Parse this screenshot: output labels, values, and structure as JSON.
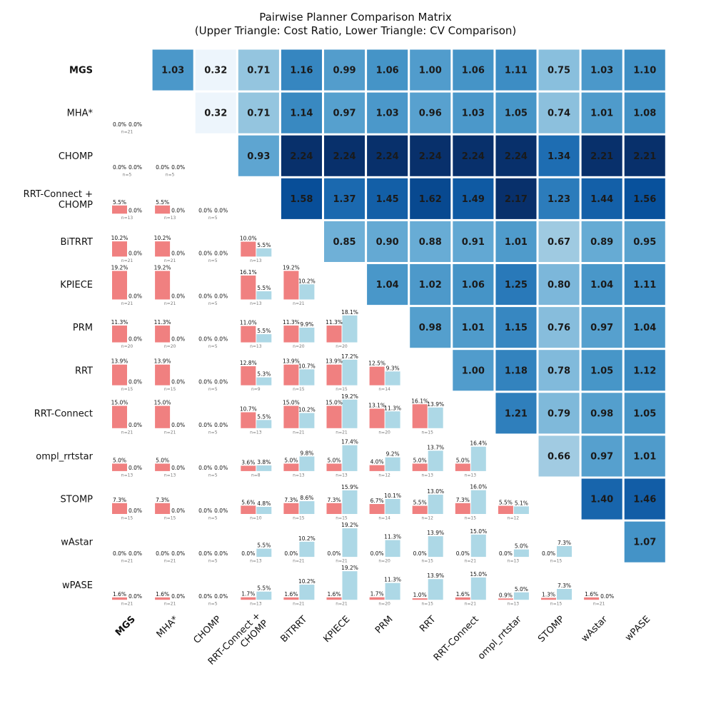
{
  "chart_data": {
    "type": "heatmap",
    "title": "Pairwise Planner Comparison Matrix",
    "subtitle": "(Upper Triangle: Cost Ratio, Lower Triangle: CV Comparison)",
    "planners": [
      "MGS",
      "MHA*",
      "CHOMP",
      "RRT-Connect + CHOMP",
      "BiTRRT",
      "KPIECE",
      "PRM",
      "RRT",
      "RRT-Connect",
      "ompl_rrtstar",
      "STOMP",
      "wAstar",
      "wPASE"
    ],
    "bold_planner": "MGS",
    "colormap": "Blues",
    "color_range": [
      0.3,
      2.0
    ],
    "bar_colors": {
      "row_planner": "#f08080",
      "col_planner": "#add8e6"
    },
    "cost_ratio": [
      [
        null,
        1.03,
        0.32,
        0.71,
        1.16,
        0.99,
        1.06,
        1.0,
        1.06,
        1.11,
        0.75,
        1.03,
        1.1
      ],
      [
        null,
        null,
        0.32,
        0.71,
        1.14,
        0.97,
        1.03,
        0.96,
        1.03,
        1.05,
        0.74,
        1.01,
        1.08
      ],
      [
        null,
        null,
        null,
        0.93,
        2.24,
        2.24,
        2.24,
        2.24,
        2.24,
        2.24,
        1.34,
        2.21,
        2.21
      ],
      [
        null,
        null,
        null,
        null,
        1.58,
        1.37,
        1.45,
        1.62,
        1.49,
        2.17,
        1.23,
        1.44,
        1.56
      ],
      [
        null,
        null,
        null,
        null,
        null,
        0.85,
        0.9,
        0.88,
        0.91,
        1.01,
        0.67,
        0.89,
        0.95
      ],
      [
        null,
        null,
        null,
        null,
        null,
        null,
        1.04,
        1.02,
        1.06,
        1.25,
        0.8,
        1.04,
        1.11
      ],
      [
        null,
        null,
        null,
        null,
        null,
        null,
        null,
        0.98,
        1.01,
        1.15,
        0.76,
        0.97,
        1.04
      ],
      [
        null,
        null,
        null,
        null,
        null,
        null,
        null,
        null,
        1.0,
        1.18,
        0.78,
        1.05,
        1.12
      ],
      [
        null,
        null,
        null,
        null,
        null,
        null,
        null,
        null,
        null,
        1.21,
        0.79,
        0.98,
        1.05
      ],
      [
        null,
        null,
        null,
        null,
        null,
        null,
        null,
        null,
        null,
        null,
        0.66,
        0.97,
        1.01
      ],
      [
        null,
        null,
        null,
        null,
        null,
        null,
        null,
        null,
        null,
        null,
        null,
        1.4,
        1.46
      ],
      [
        null,
        null,
        null,
        null,
        null,
        null,
        null,
        null,
        null,
        null,
        null,
        null,
        1.07
      ],
      [
        null,
        null,
        null,
        null,
        null,
        null,
        null,
        null,
        null,
        null,
        null,
        null,
        null
      ]
    ],
    "cost_ratio_labels": [
      [
        null,
        "1.03",
        "0.32",
        "0.71",
        "1.16",
        "0.99",
        "1.06",
        "1.00",
        "1.06",
        "1.11",
        "0.75",
        "1.03",
        "1.10"
      ],
      [
        null,
        null,
        "0.32",
        "0.71",
        "1.14",
        "0.97",
        "1.03",
        "0.96",
        "1.03",
        "1.05",
        "0.74",
        "1.01",
        "1.08"
      ],
      [
        null,
        null,
        null,
        "0.93",
        "2.24",
        "2.24",
        "2.24",
        "2.24",
        "2.24",
        "2.24",
        "1.34",
        "2.21",
        "2.21"
      ],
      [
        null,
        null,
        null,
        null,
        "1.58",
        "1.37",
        "1.45",
        "1.62",
        "1.49",
        "2.17",
        "1.23",
        "1.44",
        "1.56"
      ],
      [
        null,
        null,
        null,
        null,
        null,
        "0.85",
        "0.90",
        "0.88",
        "0.91",
        "1.01",
        "0.67",
        "0.89",
        "0.95"
      ],
      [
        null,
        null,
        null,
        null,
        null,
        null,
        "1.04",
        "1.02",
        "1.06",
        "1.25",
        "0.80",
        "1.04",
        "1.11"
      ],
      [
        null,
        null,
        null,
        null,
        null,
        null,
        null,
        "0.98",
        "1.01",
        "1.15",
        "0.76",
        "0.97",
        "1.04"
      ],
      [
        null,
        null,
        null,
        null,
        null,
        null,
        null,
        null,
        "1.00",
        "1.18",
        "0.78",
        "1.05",
        "1.12"
      ],
      [
        null,
        null,
        null,
        null,
        null,
        null,
        null,
        null,
        null,
        "1.21",
        "0.79",
        "0.98",
        "1.05"
      ],
      [
        null,
        null,
        null,
        null,
        null,
        null,
        null,
        null,
        null,
        null,
        "0.66",
        "0.97",
        "1.01"
      ],
      [
        null,
        null,
        null,
        null,
        null,
        null,
        null,
        null,
        null,
        null,
        null,
        "1.40",
        "1.46"
      ],
      [
        null,
        null,
        null,
        null,
        null,
        null,
        null,
        null,
        null,
        null,
        null,
        null,
        "1.07"
      ],
      [
        null,
        null,
        null,
        null,
        null,
        null,
        null,
        null,
        null,
        null,
        null,
        null,
        null
      ]
    ],
    "cv_comparison": [
      {
        "row": 1,
        "col": 0,
        "a": 0.0,
        "b": 0.0,
        "a_label": "0.0%",
        "b_label": "0.0%",
        "n_label": "n=21"
      },
      {
        "row": 2,
        "col": 0,
        "a": 0.0,
        "b": 0.0,
        "a_label": "0.0%",
        "b_label": "0.0%",
        "n_label": "n=5"
      },
      {
        "row": 2,
        "col": 1,
        "a": 0.0,
        "b": 0.0,
        "a_label": "0.0%",
        "b_label": "0.0%",
        "n_label": "n=5"
      },
      {
        "row": 3,
        "col": 0,
        "a": 5.5,
        "b": 0.0,
        "a_label": "5.5%",
        "b_label": "0.0%",
        "n_label": "n=13"
      },
      {
        "row": 3,
        "col": 1,
        "a": 5.5,
        "b": 0.0,
        "a_label": "5.5%",
        "b_label": "0.0%",
        "n_label": "n=13"
      },
      {
        "row": 3,
        "col": 2,
        "a": 0.0,
        "b": 0.0,
        "a_label": "0.0%",
        "b_label": "0.0%",
        "n_label": "n=5"
      },
      {
        "row": 4,
        "col": 0,
        "a": 10.2,
        "b": 0.0,
        "a_label": "10.2%",
        "b_label": "0.0%",
        "n_label": "n=21"
      },
      {
        "row": 4,
        "col": 1,
        "a": 10.2,
        "b": 0.0,
        "a_label": "10.2%",
        "b_label": "0.0%",
        "n_label": "n=21"
      },
      {
        "row": 4,
        "col": 2,
        "a": 0.0,
        "b": 0.0,
        "a_label": "0.0%",
        "b_label": "0.0%",
        "n_label": "n=5"
      },
      {
        "row": 4,
        "col": 3,
        "a": 10.0,
        "b": 5.5,
        "a_label": "10.0%",
        "b_label": "5.5%",
        "n_label": "n=13"
      },
      {
        "row": 5,
        "col": 0,
        "a": 19.2,
        "b": 0.0,
        "a_label": "19.2%",
        "b_label": "0.0%",
        "n_label": "n=21"
      },
      {
        "row": 5,
        "col": 1,
        "a": 19.2,
        "b": 0.0,
        "a_label": "19.2%",
        "b_label": "0.0%",
        "n_label": "n=21"
      },
      {
        "row": 5,
        "col": 2,
        "a": 0.0,
        "b": 0.0,
        "a_label": "0.0%",
        "b_label": "0.0%",
        "n_label": "n=5"
      },
      {
        "row": 5,
        "col": 3,
        "a": 16.1,
        "b": 5.5,
        "a_label": "16.1%",
        "b_label": "5.5%",
        "n_label": "n=13"
      },
      {
        "row": 5,
        "col": 4,
        "a": 19.2,
        "b": 10.2,
        "a_label": "19.2%",
        "b_label": "10.2%",
        "n_label": "n=21"
      },
      {
        "row": 6,
        "col": 0,
        "a": 11.3,
        "b": 0.0,
        "a_label": "11.3%",
        "b_label": "0.0%",
        "n_label": "n=20"
      },
      {
        "row": 6,
        "col": 1,
        "a": 11.3,
        "b": 0.0,
        "a_label": "11.3%",
        "b_label": "0.0%",
        "n_label": "n=20"
      },
      {
        "row": 6,
        "col": 2,
        "a": 0.0,
        "b": 0.0,
        "a_label": "0.0%",
        "b_label": "0.0%",
        "n_label": "n=5"
      },
      {
        "row": 6,
        "col": 3,
        "a": 11.0,
        "b": 5.5,
        "a_label": "11.0%",
        "b_label": "5.5%",
        "n_label": "n=13"
      },
      {
        "row": 6,
        "col": 4,
        "a": 11.3,
        "b": 9.9,
        "a_label": "11.3%",
        "b_label": "9.9%",
        "n_label": "n=20"
      },
      {
        "row": 6,
        "col": 5,
        "a": 11.3,
        "b": 18.1,
        "a_label": "11.3%",
        "b_label": "18.1%",
        "n_label": "n=20"
      },
      {
        "row": 7,
        "col": 0,
        "a": 13.9,
        "b": 0.0,
        "a_label": "13.9%",
        "b_label": "0.0%",
        "n_label": "n=15"
      },
      {
        "row": 7,
        "col": 1,
        "a": 13.9,
        "b": 0.0,
        "a_label": "13.9%",
        "b_label": "0.0%",
        "n_label": "n=15"
      },
      {
        "row": 7,
        "col": 2,
        "a": 0.0,
        "b": 0.0,
        "a_label": "0.0%",
        "b_label": "0.0%",
        "n_label": "n=5"
      },
      {
        "row": 7,
        "col": 3,
        "a": 12.8,
        "b": 5.3,
        "a_label": "12.8%",
        "b_label": "5.3%",
        "n_label": "n=9"
      },
      {
        "row": 7,
        "col": 4,
        "a": 13.9,
        "b": 10.7,
        "a_label": "13.9%",
        "b_label": "10.7%",
        "n_label": "n=15"
      },
      {
        "row": 7,
        "col": 5,
        "a": 13.9,
        "b": 17.2,
        "a_label": "13.9%",
        "b_label": "17.2%",
        "n_label": "n=15"
      },
      {
        "row": 7,
        "col": 6,
        "a": 12.5,
        "b": 9.3,
        "a_label": "12.5%",
        "b_label": "9.3%",
        "n_label": "n=14"
      },
      {
        "row": 8,
        "col": 0,
        "a": 15.0,
        "b": 0.0,
        "a_label": "15.0%",
        "b_label": "0.0%",
        "n_label": "n=21"
      },
      {
        "row": 8,
        "col": 1,
        "a": 15.0,
        "b": 0.0,
        "a_label": "15.0%",
        "b_label": "0.0%",
        "n_label": "n=21"
      },
      {
        "row": 8,
        "col": 2,
        "a": 0.0,
        "b": 0.0,
        "a_label": "0.0%",
        "b_label": "0.0%",
        "n_label": "n=5"
      },
      {
        "row": 8,
        "col": 3,
        "a": 10.7,
        "b": 5.5,
        "a_label": "10.7%",
        "b_label": "5.5%",
        "n_label": "n=13"
      },
      {
        "row": 8,
        "col": 4,
        "a": 15.0,
        "b": 10.2,
        "a_label": "15.0%",
        "b_label": "10.2%",
        "n_label": "n=21"
      },
      {
        "row": 8,
        "col": 5,
        "a": 15.0,
        "b": 19.2,
        "a_label": "15.0%",
        "b_label": "19.2%",
        "n_label": "n=21"
      },
      {
        "row": 8,
        "col": 6,
        "a": 13.1,
        "b": 11.3,
        "a_label": "13.1%",
        "b_label": "11.3%",
        "n_label": "n=20"
      },
      {
        "row": 8,
        "col": 7,
        "a": 16.1,
        "b": 13.9,
        "a_label": "16.1%",
        "b_label": "13.9%",
        "n_label": "n=15"
      },
      {
        "row": 9,
        "col": 0,
        "a": 5.0,
        "b": 0.0,
        "a_label": "5.0%",
        "b_label": "0.0%",
        "n_label": "n=13"
      },
      {
        "row": 9,
        "col": 1,
        "a": 5.0,
        "b": 0.0,
        "a_label": "5.0%",
        "b_label": "0.0%",
        "n_label": "n=13"
      },
      {
        "row": 9,
        "col": 2,
        "a": 0.0,
        "b": 0.0,
        "a_label": "0.0%",
        "b_label": "0.0%",
        "n_label": "n=5"
      },
      {
        "row": 9,
        "col": 3,
        "a": 3.6,
        "b": 3.8,
        "a_label": "3.6%",
        "b_label": "3.8%",
        "n_label": "n=8"
      },
      {
        "row": 9,
        "col": 4,
        "a": 5.0,
        "b": 9.8,
        "a_label": "5.0%",
        "b_label": "9.8%",
        "n_label": "n=13"
      },
      {
        "row": 9,
        "col": 5,
        "a": 5.0,
        "b": 17.4,
        "a_label": "5.0%",
        "b_label": "17.4%",
        "n_label": "n=13"
      },
      {
        "row": 9,
        "col": 6,
        "a": 4.0,
        "b": 9.2,
        "a_label": "4.0%",
        "b_label": "9.2%",
        "n_label": "n=12"
      },
      {
        "row": 9,
        "col": 7,
        "a": 5.0,
        "b": 13.7,
        "a_label": "5.0%",
        "b_label": "13.7%",
        "n_label": "n=13"
      },
      {
        "row": 9,
        "col": 8,
        "a": 5.0,
        "b": 16.4,
        "a_label": "5.0%",
        "b_label": "16.4%",
        "n_label": "n=13"
      },
      {
        "row": 10,
        "col": 0,
        "a": 7.3,
        "b": 0.0,
        "a_label": "7.3%",
        "b_label": "0.0%",
        "n_label": "n=15"
      },
      {
        "row": 10,
        "col": 1,
        "a": 7.3,
        "b": 0.0,
        "a_label": "7.3%",
        "b_label": "0.0%",
        "n_label": "n=15"
      },
      {
        "row": 10,
        "col": 2,
        "a": 0.0,
        "b": 0.0,
        "a_label": "0.0%",
        "b_label": "0.0%",
        "n_label": "n=5"
      },
      {
        "row": 10,
        "col": 3,
        "a": 5.6,
        "b": 4.8,
        "a_label": "5.6%",
        "b_label": "4.8%",
        "n_label": "n=10"
      },
      {
        "row": 10,
        "col": 4,
        "a": 7.3,
        "b": 8.6,
        "a_label": "7.3%",
        "b_label": "8.6%",
        "n_label": "n=15"
      },
      {
        "row": 10,
        "col": 5,
        "a": 7.3,
        "b": 15.9,
        "a_label": "7.3%",
        "b_label": "15.9%",
        "n_label": "n=15"
      },
      {
        "row": 10,
        "col": 6,
        "a": 6.7,
        "b": 10.1,
        "a_label": "6.7%",
        "b_label": "10.1%",
        "n_label": "n=14"
      },
      {
        "row": 10,
        "col": 7,
        "a": 5.5,
        "b": 13.0,
        "a_label": "5.5%",
        "b_label": "13.0%",
        "n_label": "n=12"
      },
      {
        "row": 10,
        "col": 8,
        "a": 7.3,
        "b": 16.0,
        "a_label": "7.3%",
        "b_label": "16.0%",
        "n_label": "n=15"
      },
      {
        "row": 10,
        "col": 9,
        "a": 5.5,
        "b": 5.1,
        "a_label": "5.5%",
        "b_label": "5.1%",
        "n_label": "n=12"
      },
      {
        "row": 11,
        "col": 0,
        "a": 0.0,
        "b": 0.0,
        "a_label": "0.0%",
        "b_label": "0.0%",
        "n_label": "n=21"
      },
      {
        "row": 11,
        "col": 1,
        "a": 0.0,
        "b": 0.0,
        "a_label": "0.0%",
        "b_label": "0.0%",
        "n_label": "n=21"
      },
      {
        "row": 11,
        "col": 2,
        "a": 0.0,
        "b": 0.0,
        "a_label": "0.0%",
        "b_label": "0.0%",
        "n_label": "n=5"
      },
      {
        "row": 11,
        "col": 3,
        "a": 0.0,
        "b": 5.5,
        "a_label": "0.0%",
        "b_label": "5.5%",
        "n_label": "n=13"
      },
      {
        "row": 11,
        "col": 4,
        "a": 0.0,
        "b": 10.2,
        "a_label": "0.0%",
        "b_label": "10.2%",
        "n_label": "n=21"
      },
      {
        "row": 11,
        "col": 5,
        "a": 0.0,
        "b": 19.2,
        "a_label": "0.0%",
        "b_label": "19.2%",
        "n_label": "n=21"
      },
      {
        "row": 11,
        "col": 6,
        "a": 0.0,
        "b": 11.3,
        "a_label": "0.0%",
        "b_label": "11.3%",
        "n_label": "n=20"
      },
      {
        "row": 11,
        "col": 7,
        "a": 0.0,
        "b": 13.9,
        "a_label": "0.0%",
        "b_label": "13.9%",
        "n_label": "n=15"
      },
      {
        "row": 11,
        "col": 8,
        "a": 0.0,
        "b": 15.0,
        "a_label": "0.0%",
        "b_label": "15.0%",
        "n_label": "n=21"
      },
      {
        "row": 11,
        "col": 9,
        "a": 0.0,
        "b": 5.0,
        "a_label": "0.0%",
        "b_label": "5.0%",
        "n_label": "n=13"
      },
      {
        "row": 11,
        "col": 10,
        "a": 0.0,
        "b": 7.3,
        "a_label": "0.0%",
        "b_label": "7.3%",
        "n_label": "n=15"
      },
      {
        "row": 12,
        "col": 0,
        "a": 1.6,
        "b": 0.0,
        "a_label": "1.6%",
        "b_label": "0.0%",
        "n_label": "n=21"
      },
      {
        "row": 12,
        "col": 1,
        "a": 1.6,
        "b": 0.0,
        "a_label": "1.6%",
        "b_label": "0.0%",
        "n_label": "n=21"
      },
      {
        "row": 12,
        "col": 2,
        "a": 0.0,
        "b": 0.0,
        "a_label": "0.0%",
        "b_label": "0.0%",
        "n_label": "n=5"
      },
      {
        "row": 12,
        "col": 3,
        "a": 1.7,
        "b": 5.5,
        "a_label": "1.7%",
        "b_label": "5.5%",
        "n_label": "n=13"
      },
      {
        "row": 12,
        "col": 4,
        "a": 1.6,
        "b": 10.2,
        "a_label": "1.6%",
        "b_label": "10.2%",
        "n_label": "n=21"
      },
      {
        "row": 12,
        "col": 5,
        "a": 1.6,
        "b": 19.2,
        "a_label": "1.6%",
        "b_label": "19.2%",
        "n_label": "n=21"
      },
      {
        "row": 12,
        "col": 6,
        "a": 1.7,
        "b": 11.3,
        "a_label": "1.7%",
        "b_label": "11.3%",
        "n_label": "n=20"
      },
      {
        "row": 12,
        "col": 7,
        "a": 1.0,
        "b": 13.9,
        "a_label": "1.0%",
        "b_label": "13.9%",
        "n_label": "n=15"
      },
      {
        "row": 12,
        "col": 8,
        "a": 1.6,
        "b": 15.0,
        "a_label": "1.6%",
        "b_label": "15.0%",
        "n_label": "n=21"
      },
      {
        "row": 12,
        "col": 9,
        "a": 0.9,
        "b": 5.0,
        "a_label": "0.9%",
        "b_label": "5.0%",
        "n_label": "n=13"
      },
      {
        "row": 12,
        "col": 10,
        "a": 1.3,
        "b": 7.3,
        "a_label": "1.3%",
        "b_label": "7.3%",
        "n_label": "n=15"
      },
      {
        "row": 12,
        "col": 11,
        "a": 1.6,
        "b": 0.0,
        "a_label": "1.6%",
        "b_label": "0.0%",
        "n_label": "n=21"
      }
    ],
    "cv_scale_max": 19.2
  }
}
